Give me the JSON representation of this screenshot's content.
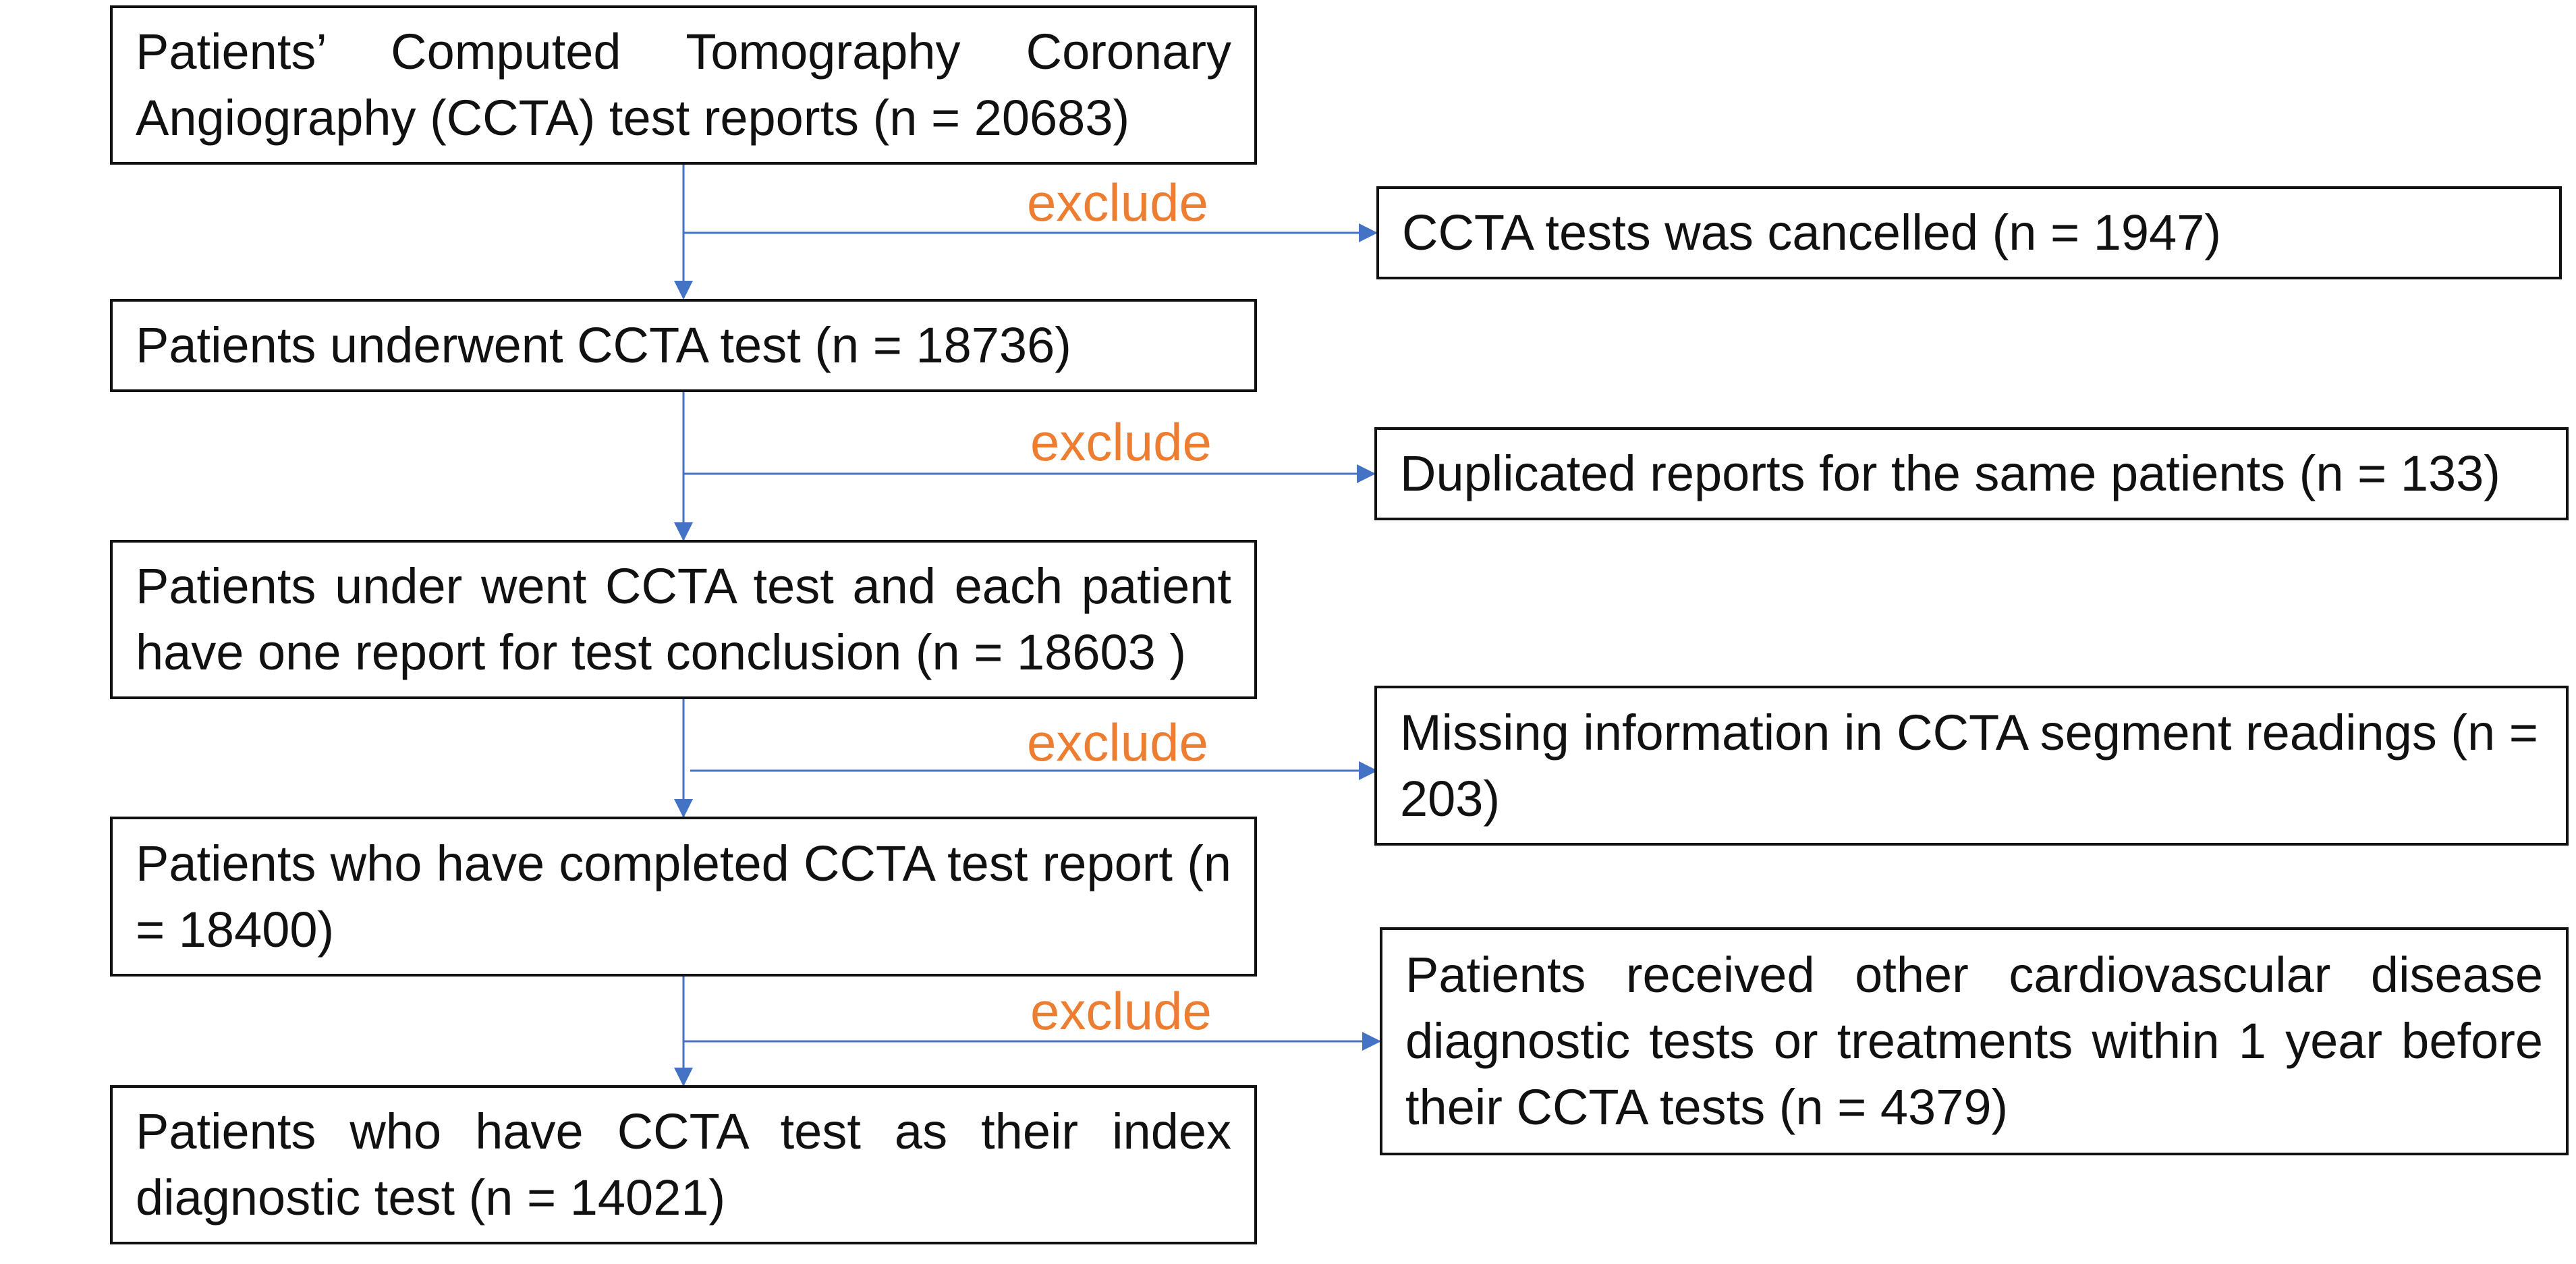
{
  "colors": {
    "arrow": "#4472C4",
    "exclude_label": "#ED7D31",
    "box_border": "#111111",
    "text": "#111111"
  },
  "exclude_label": "exclude",
  "flow": [
    {
      "text": "Patients’ Computed Tomography Coronary Angiography (CCTA) test reports (n = 20683)"
    },
    {
      "text": "Patients underwent CCTA test (n = 18736)"
    },
    {
      "text": "Patients under went CCTA test and each patient have one report for test conclusion (n = 18603 )"
    },
    {
      "text": "Patients who have completed CCTA test report (n = 18400)"
    },
    {
      "text": "Patients who have CCTA test as their index diagnostic test (n = 14021)"
    }
  ],
  "exclusions": [
    {
      "text": "CCTA tests was cancelled (n = 1947)"
    },
    {
      "text": "Duplicated reports for the same patients (n = 133)"
    },
    {
      "text": "Missing information in CCTA segment readings (n = 203)"
    },
    {
      "text": "Patients received other cardiovascular disease diagnostic tests or treatments within 1 year before their CCTA tests (n = 4379)"
    }
  ]
}
